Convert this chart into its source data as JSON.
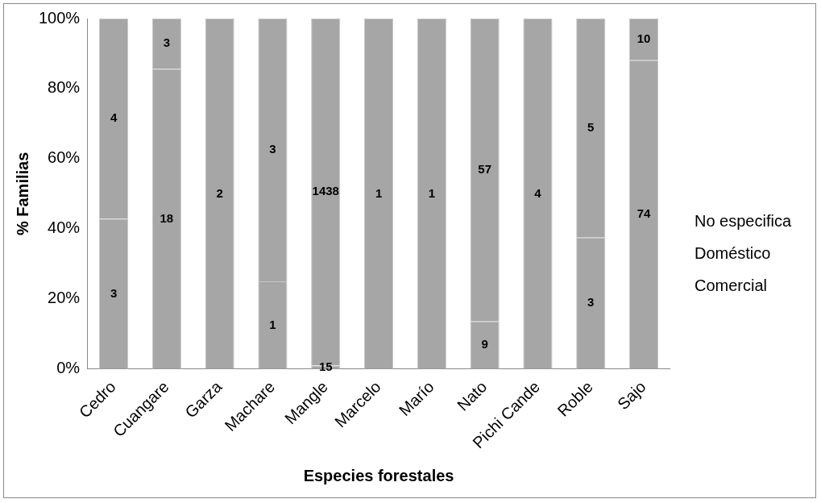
{
  "chart_data": {
    "type": "bar",
    "stacked": true,
    "xlabel": "Especies forestales",
    "ylabel": "% Familias",
    "categories": [
      "Cedro",
      "Cuangare",
      "Garza",
      "Machare",
      "Mangle",
      "Marcelo",
      "Marío",
      "Nato",
      "Pichi Cande",
      "Roble",
      "Sajo"
    ],
    "series": [
      {
        "name": "Comercial",
        "color": "#a6a6a6",
        "values": [
          42.9,
          null,
          null,
          25,
          1.0,
          null,
          null,
          13.6,
          null,
          37.5,
          null
        ]
      },
      {
        "name": "Doméstico",
        "color": "#a6a6a6",
        "values": [
          57.1,
          85.7,
          100,
          75,
          99.0,
          100,
          100,
          86.4,
          100,
          62.5,
          88.1
        ]
      },
      {
        "name": "No especifica",
        "color": "#a6a6a6",
        "values": [
          null,
          14.3,
          null,
          null,
          null,
          null,
          null,
          null,
          null,
          null,
          11.9
        ]
      }
    ],
    "annotations": [
      "3",
      "4",
      "18",
      "3",
      "2",
      "1",
      "3",
      "15",
      "1438",
      "1",
      "1",
      "9",
      "57",
      "4",
      "3",
      "5",
      "74",
      "10"
    ],
    "ylim": [
      0,
      100
    ],
    "yticks": [
      {
        "value": 0,
        "label": "0%"
      },
      {
        "value": 20,
        "label": "20%"
      },
      {
        "value": 40,
        "label": "40%"
      },
      {
        "value": 60,
        "label": "60%"
      },
      {
        "value": 80,
        "label": "80%"
      },
      {
        "value": 100,
        "label": "100%"
      }
    ],
    "grid": false,
    "legend": "right"
  }
}
